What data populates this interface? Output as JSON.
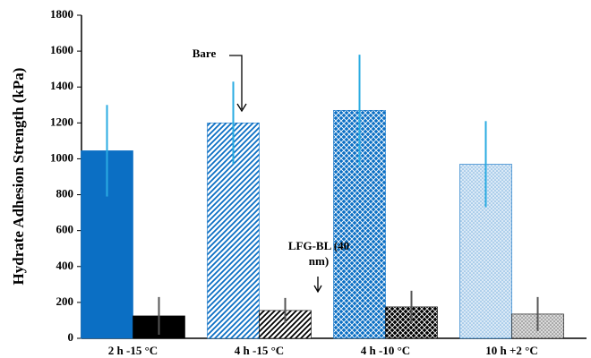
{
  "chart_data": {
    "type": "bar",
    "y_label": "Hydrate Adhesion Strength (kPa)",
    "categories": [
      "2 h -15 °C",
      "4 h -15 °C",
      "4 h -10 °C",
      "10 h +2 °C"
    ],
    "patterns": [
      "solid",
      "diagonal",
      "crosshatch",
      "dots"
    ],
    "series": [
      {
        "name": "Bare",
        "color": "#0b6fc4",
        "error_color": "#29abe2",
        "values": [
          1045,
          1200,
          1270,
          970
        ],
        "errors": [
          255,
          230,
          310,
          240
        ]
      },
      {
        "name": "LFG-BL (40 nm)",
        "color": "#000000",
        "error_color": "#555555",
        "values": [
          125,
          155,
          175,
          135
        ],
        "errors": [
          105,
          70,
          90,
          95
        ]
      }
    ],
    "ylim": [
      0,
      1800
    ],
    "yticks": [
      0,
      200,
      400,
      600,
      800,
      1000,
      1200,
      1400,
      1600,
      1800
    ],
    "grid": false
  }
}
